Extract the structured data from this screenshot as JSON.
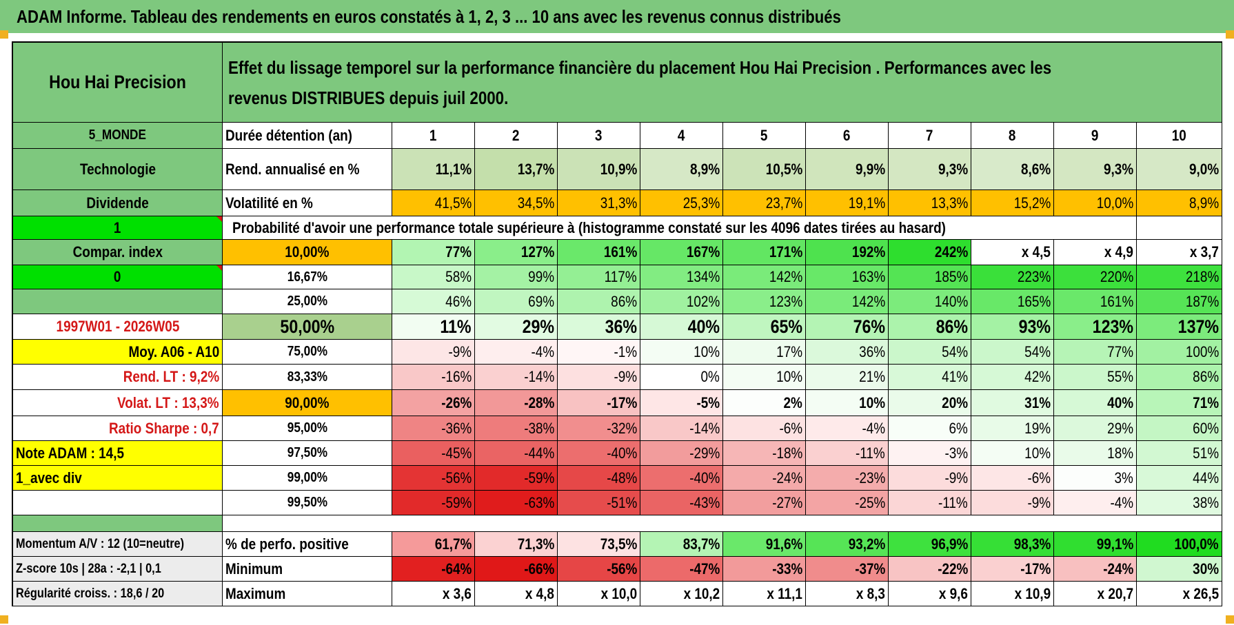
{
  "page": {
    "title": "ADAM Informe. Tableau des rendements en euros constatés à 1, 2, 3 ... 10 ans avec les revenus connus distribués"
  },
  "fund": {
    "name": "Hou Hai Precision",
    "description": "Effet du lissage temporel sur la performance financière du placement Hou Hai Precision . Performances avec les revenus DISTRIBUES depuis juil 2000."
  },
  "side": {
    "zone": "5_MONDE",
    "sector": "Technologie",
    "dividend_label": "Dividende",
    "dividend_value": "1",
    "compar_label": "Compar. index",
    "compar_value": "0",
    "period": "1997W01 - 2026W05",
    "moy": "Moy. A06 - A10",
    "rend_lt": "Rend. LT :   9,2%",
    "volat_lt": "Volat. LT :   13,3%",
    "sharpe": "Ratio Sharpe :    0,7",
    "note": "Note ADAM : 14,5",
    "div_mode": "1_avec div"
  },
  "header": {
    "duration_label": "Durée détention (an)",
    "years": [
      "1",
      "2",
      "3",
      "4",
      "5",
      "6",
      "7",
      "8",
      "9",
      "10"
    ]
  },
  "rend": {
    "label": "Rend. annualisé en %",
    "values": [
      "11,1%",
      "13,7%",
      "10,9%",
      "8,9%",
      "10,5%",
      "9,9%",
      "9,3%",
      "8,6%",
      "9,3%",
      "9,0%"
    ]
  },
  "vol": {
    "label": "Volatilité en %",
    "values": [
      "41,5%",
      "34,5%",
      "31,3%",
      "25,3%",
      "23,7%",
      "19,1%",
      "13,3%",
      "15,2%",
      "10,0%",
      "8,9%"
    ]
  },
  "prob_title": "Probabilité d'avoir une performance totale supérieure à (histogramme constaté sur les 4096 dates tirées au hasard)",
  "prob_rows": [
    {
      "p": "10,00%",
      "values": [
        "77%",
        "127%",
        "161%",
        "167%",
        "171%",
        "192%",
        "242%",
        "x 4,5",
        "x 4,9",
        "x 3,7"
      ]
    },
    {
      "p": "16,67%",
      "values": [
        "58%",
        "99%",
        "117%",
        "134%",
        "142%",
        "163%",
        "185%",
        "223%",
        "220%",
        "218%"
      ]
    },
    {
      "p": "25,00%",
      "values": [
        "46%",
        "69%",
        "86%",
        "102%",
        "123%",
        "142%",
        "140%",
        "165%",
        "161%",
        "187%"
      ]
    },
    {
      "p": "50,00%",
      "values": [
        "11%",
        "29%",
        "36%",
        "40%",
        "65%",
        "76%",
        "86%",
        "93%",
        "123%",
        "137%"
      ]
    },
    {
      "p": "75,00%",
      "values": [
        "-9%",
        "-4%",
        "-1%",
        "10%",
        "17%",
        "36%",
        "54%",
        "54%",
        "77%",
        "100%"
      ]
    },
    {
      "p": "83,33%",
      "values": [
        "-16%",
        "-14%",
        "-9%",
        "0%",
        "10%",
        "21%",
        "41%",
        "42%",
        "55%",
        "86%"
      ]
    },
    {
      "p": "90,00%",
      "values": [
        "-26%",
        "-28%",
        "-17%",
        "-5%",
        "2%",
        "10%",
        "20%",
        "31%",
        "40%",
        "71%"
      ]
    },
    {
      "p": "95,00%",
      "values": [
        "-36%",
        "-38%",
        "-32%",
        "-14%",
        "-6%",
        "-4%",
        "6%",
        "19%",
        "29%",
        "60%"
      ]
    },
    {
      "p": "97,50%",
      "values": [
        "-45%",
        "-44%",
        "-40%",
        "-29%",
        "-18%",
        "-11%",
        "-3%",
        "10%",
        "18%",
        "51%"
      ]
    },
    {
      "p": "99,00%",
      "values": [
        "-56%",
        "-59%",
        "-48%",
        "-40%",
        "-24%",
        "-23%",
        "-9%",
        "-6%",
        "3%",
        "44%"
      ]
    },
    {
      "p": "99,50%",
      "values": [
        "-59%",
        "-63%",
        "-51%",
        "-43%",
        "-27%",
        "-25%",
        "-11%",
        "-9%",
        "-4%",
        "38%"
      ]
    }
  ],
  "bottom": {
    "momentum": "Momentum A/V : 12 (10=neutre)",
    "zscore": "Z-score 10s | 28a : -2,1 | 0,1",
    "regularite": "Régularité croiss. : 18,6 / 20",
    "pos": {
      "label": "% de perfo. positive",
      "values": [
        "61,7%",
        "71,3%",
        "73,5%",
        "83,7%",
        "91,6%",
        "93,2%",
        "96,9%",
        "98,3%",
        "99,1%",
        "100,0%"
      ]
    },
    "min": {
      "label": "Minimum",
      "values": [
        "-64%",
        "-66%",
        "-56%",
        "-47%",
        "-33%",
        "-37%",
        "-22%",
        "-17%",
        "-24%",
        "30%"
      ]
    },
    "max": {
      "label": "Maximum",
      "values": [
        "x 3,6",
        "x 4,8",
        "x 10,0",
        "x 10,2",
        "x 11,1",
        "x 8,3",
        "x 9,6",
        "x 10,9",
        "x 20,7",
        "x 26,5"
      ]
    }
  },
  "colors": {
    "header_green": "#7ec87e",
    "bright_green": "#00e000",
    "yellow": "#ffff00",
    "orange": "#ffc000",
    "label_red": "#d41818"
  },
  "cell_colors": {
    "rend": [
      "#cbe2b6",
      "#c4dfab",
      "#cbe2b6",
      "#d6e8c6",
      "#cce3b8",
      "#d0e5bc",
      "#d4e7c2",
      "#d8eaca",
      "#d4e7c2",
      "#d6e8c6"
    ],
    "vol": [
      "#ffc000",
      "#ffc000",
      "#ffc000",
      "#ffc000",
      "#ffc000",
      "#ffc000",
      "#ffc000",
      "#ffc000",
      "#ffc000",
      "#ffc000"
    ],
    "prob": [
      [
        "#b2f5b2",
        "#8aee8a",
        "#6ae86a",
        "#66e766",
        "#62e662",
        "#4ee24e",
        "#2ede2e",
        "#ffffff",
        "#ffffff",
        "#ffffff"
      ],
      [
        "#c8f8c8",
        "#a4f2a4",
        "#94ef94",
        "#82ec82",
        "#7aeb7a",
        "#68e868",
        "#54e454",
        "#3ae03a",
        "#3ce03c",
        "#3ee13e"
      ],
      [
        "#d6fad6",
        "#c0f6c0",
        "#aef3ae",
        "#a0f1a0",
        "#8aee8a",
        "#7aeb7a",
        "#7ceb7c",
        "#68e868",
        "#6ae86a",
        "#56e456"
      ],
      [
        "#f2fdf2",
        "#e2fbe2",
        "#dafada",
        "#d6f9d6",
        "#c0f6c0",
        "#b4f4b4",
        "#acf3ac",
        "#a4f2a4",
        "#8aee8a",
        "#7ceb7c"
      ],
      [
        "#fde6e6",
        "#feeeee",
        "#fff6f6",
        "#f4fdf4",
        "#eefcee",
        "#dbf9db",
        "#cbf7cb",
        "#cbf7cb",
        "#b6f4b6",
        "#a2f1a2"
      ],
      [
        "#f9c8c8",
        "#fad0d0",
        "#fde0e0",
        "#ffffff",
        "#f4fdf4",
        "#ebfbeb",
        "#d8f9d8",
        "#d6f9d6",
        "#cbf7cb",
        "#acf3ac"
      ],
      [
        "#f3a2a2",
        "#f29898",
        "#f8c2c2",
        "#fee6e6",
        "#fcfefc",
        "#f4fdf4",
        "#eafbea",
        "#e0fae0",
        "#d6f9d6",
        "#b8f5b8"
      ],
      [
        "#ef8484",
        "#ee7c7c",
        "#f18e8e",
        "#f9c8c8",
        "#fde2e2",
        "#feeaea",
        "#f8fef8",
        "#e8fbe8",
        "#dcf9dc",
        "#c4f6c4"
      ],
      [
        "#ea6060",
        "#ea6464",
        "#ec6e6e",
        "#f29c9c",
        "#f6b6b6",
        "#fad0d0",
        "#fef2f2",
        "#f4fdf4",
        "#e9fbe9",
        "#d2f8d2"
      ],
      [
        "#e43434",
        "#e22a2a",
        "#e64848",
        "#ec6e6e",
        "#f4aaaa",
        "#f4acac",
        "#fcdcdc",
        "#fde6e6",
        "#fcfefc",
        "#d8f9d8"
      ],
      [
        "#e22a2a",
        "#e01c1c",
        "#e64c4c",
        "#ea6464",
        "#f29e9e",
        "#f3a4a4",
        "#fbd6d6",
        "#fcdcdc",
        "#feeeee",
        "#e0fae0"
      ]
    ],
    "pos": [
      "#f59a9a",
      "#fbd2d2",
      "#fde2e2",
      "#b4f4b4",
      "#6ae86a",
      "#56e456",
      "#3ee13e",
      "#36df36",
      "#30de30",
      "#20dc20"
    ],
    "min": [
      "#e22020",
      "#e01818",
      "#e64646",
      "#ec6a6a",
      "#f29a9a",
      "#f08c8c",
      "#f8c4c4",
      "#fad0d0",
      "#f8c0c0",
      "#d0f7d0"
    ],
    "max": [
      "#ffffff",
      "#ffffff",
      "#ffffff",
      "#ffffff",
      "#ffffff",
      "#ffffff",
      "#ffffff",
      "#ffffff",
      "#ffffff",
      "#ffffff"
    ]
  }
}
